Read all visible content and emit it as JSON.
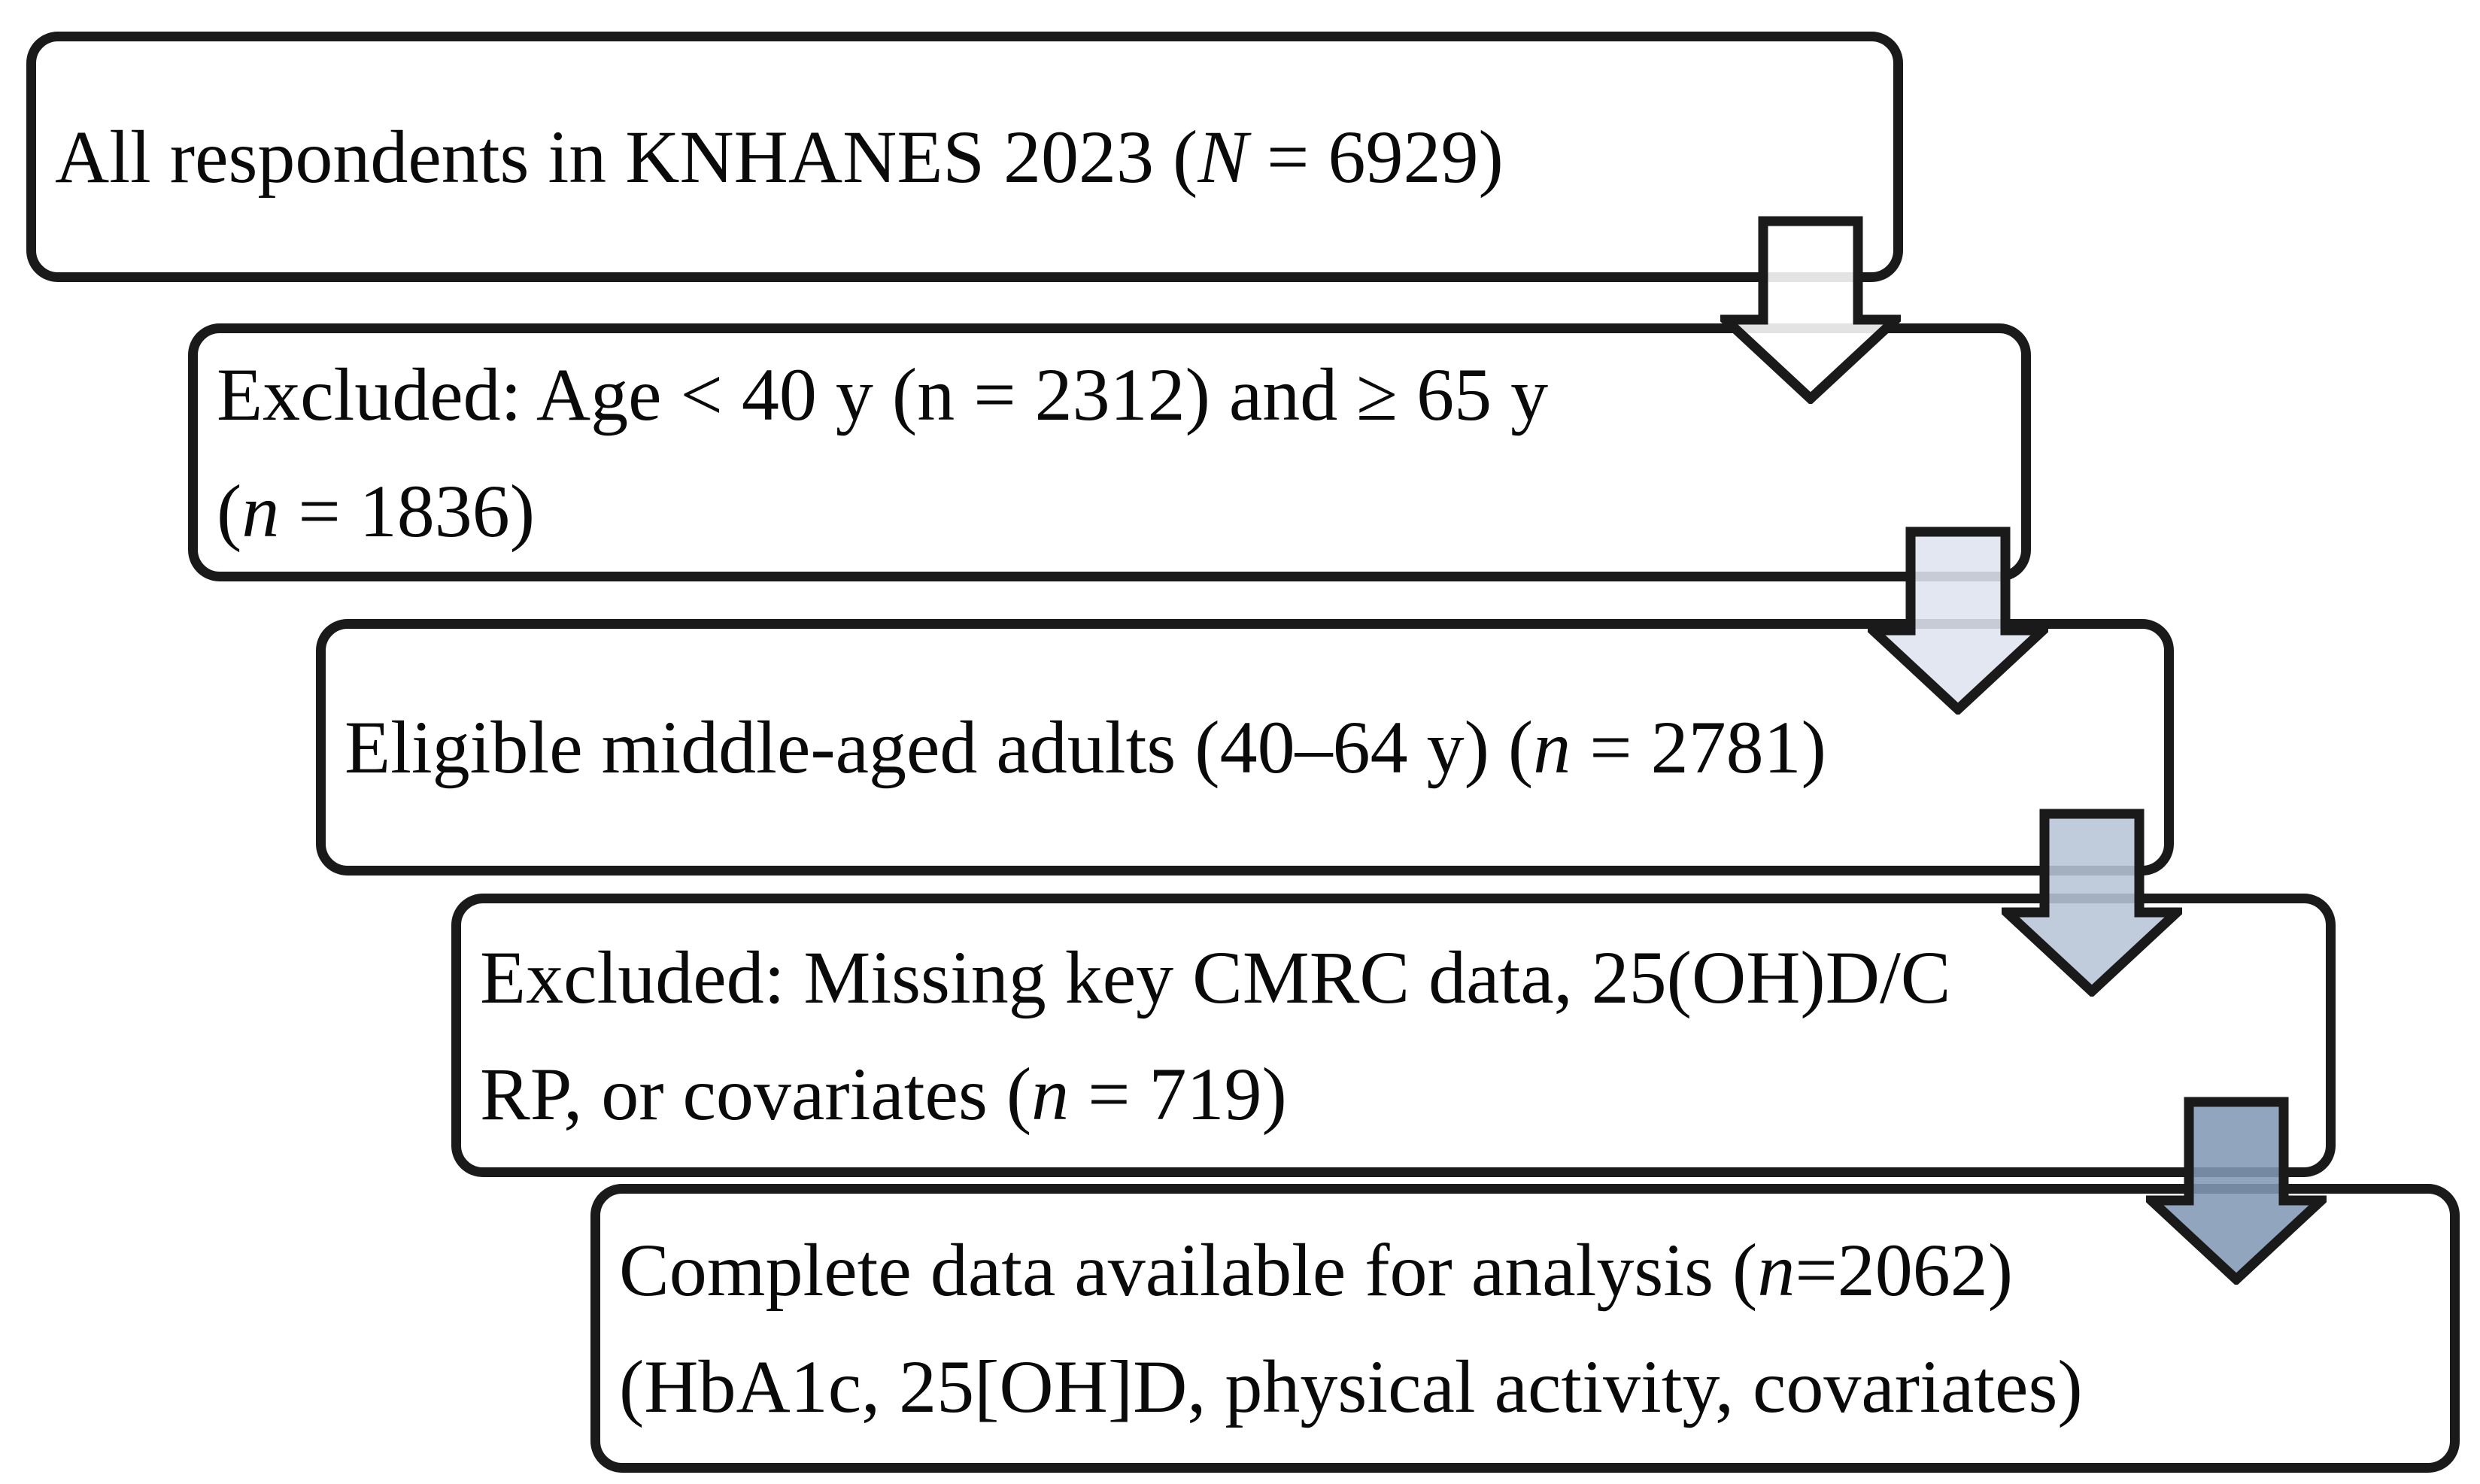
{
  "flowchart": {
    "colors": {
      "border": "#1a1a1a",
      "text": "#0a0a0a",
      "background": "#ffffff"
    },
    "boxes": [
      {
        "id": "all-respondents",
        "lines": [
          [
            {
              "t": "All respondents in KNHANES 2023 ("
            },
            {
              "t": "N",
              "i": true
            },
            {
              "t": " = 6929)"
            }
          ]
        ]
      },
      {
        "id": "excluded-age",
        "lines": [
          [
            {
              "t": "Excluded: Age < 40 y (n = 2312) and ≥ 65 y"
            }
          ],
          [
            {
              "t": "("
            },
            {
              "t": "n",
              "i": true
            },
            {
              "t": " = 1836)"
            }
          ]
        ]
      },
      {
        "id": "eligible-adults",
        "lines": [
          [
            {
              "t": "Eligible middle-aged adults (40–64 y) ("
            },
            {
              "t": "n",
              "i": true
            },
            {
              "t": " = 2781)"
            }
          ]
        ]
      },
      {
        "id": "excluded-missing",
        "lines": [
          [
            {
              "t": "Excluded: Missing key CMRC data, 25(OH)D/C"
            }
          ],
          [
            {
              "t": "RP, or covariates ("
            },
            {
              "t": "n",
              "i": true
            },
            {
              "t": " = 719)"
            }
          ]
        ]
      },
      {
        "id": "complete-data",
        "lines": [
          [
            {
              "t": "Complete data available for analysis ("
            },
            {
              "t": "n",
              "i": true
            },
            {
              "t": "=2062)"
            }
          ],
          [
            {
              "t": "(HbA1c, 25[OH]D, physical activity, covariates)"
            }
          ]
        ]
      }
    ],
    "arrows": [
      {
        "name": "down-arrow-step-1",
        "fill": "#ffffff"
      },
      {
        "name": "down-arrow-step-2",
        "fill": "#dfe4ef"
      },
      {
        "name": "down-arrow-step-3",
        "fill": "#b7c4d6"
      },
      {
        "name": "down-arrow-step-4",
        "fill": "#8298b6"
      }
    ]
  }
}
